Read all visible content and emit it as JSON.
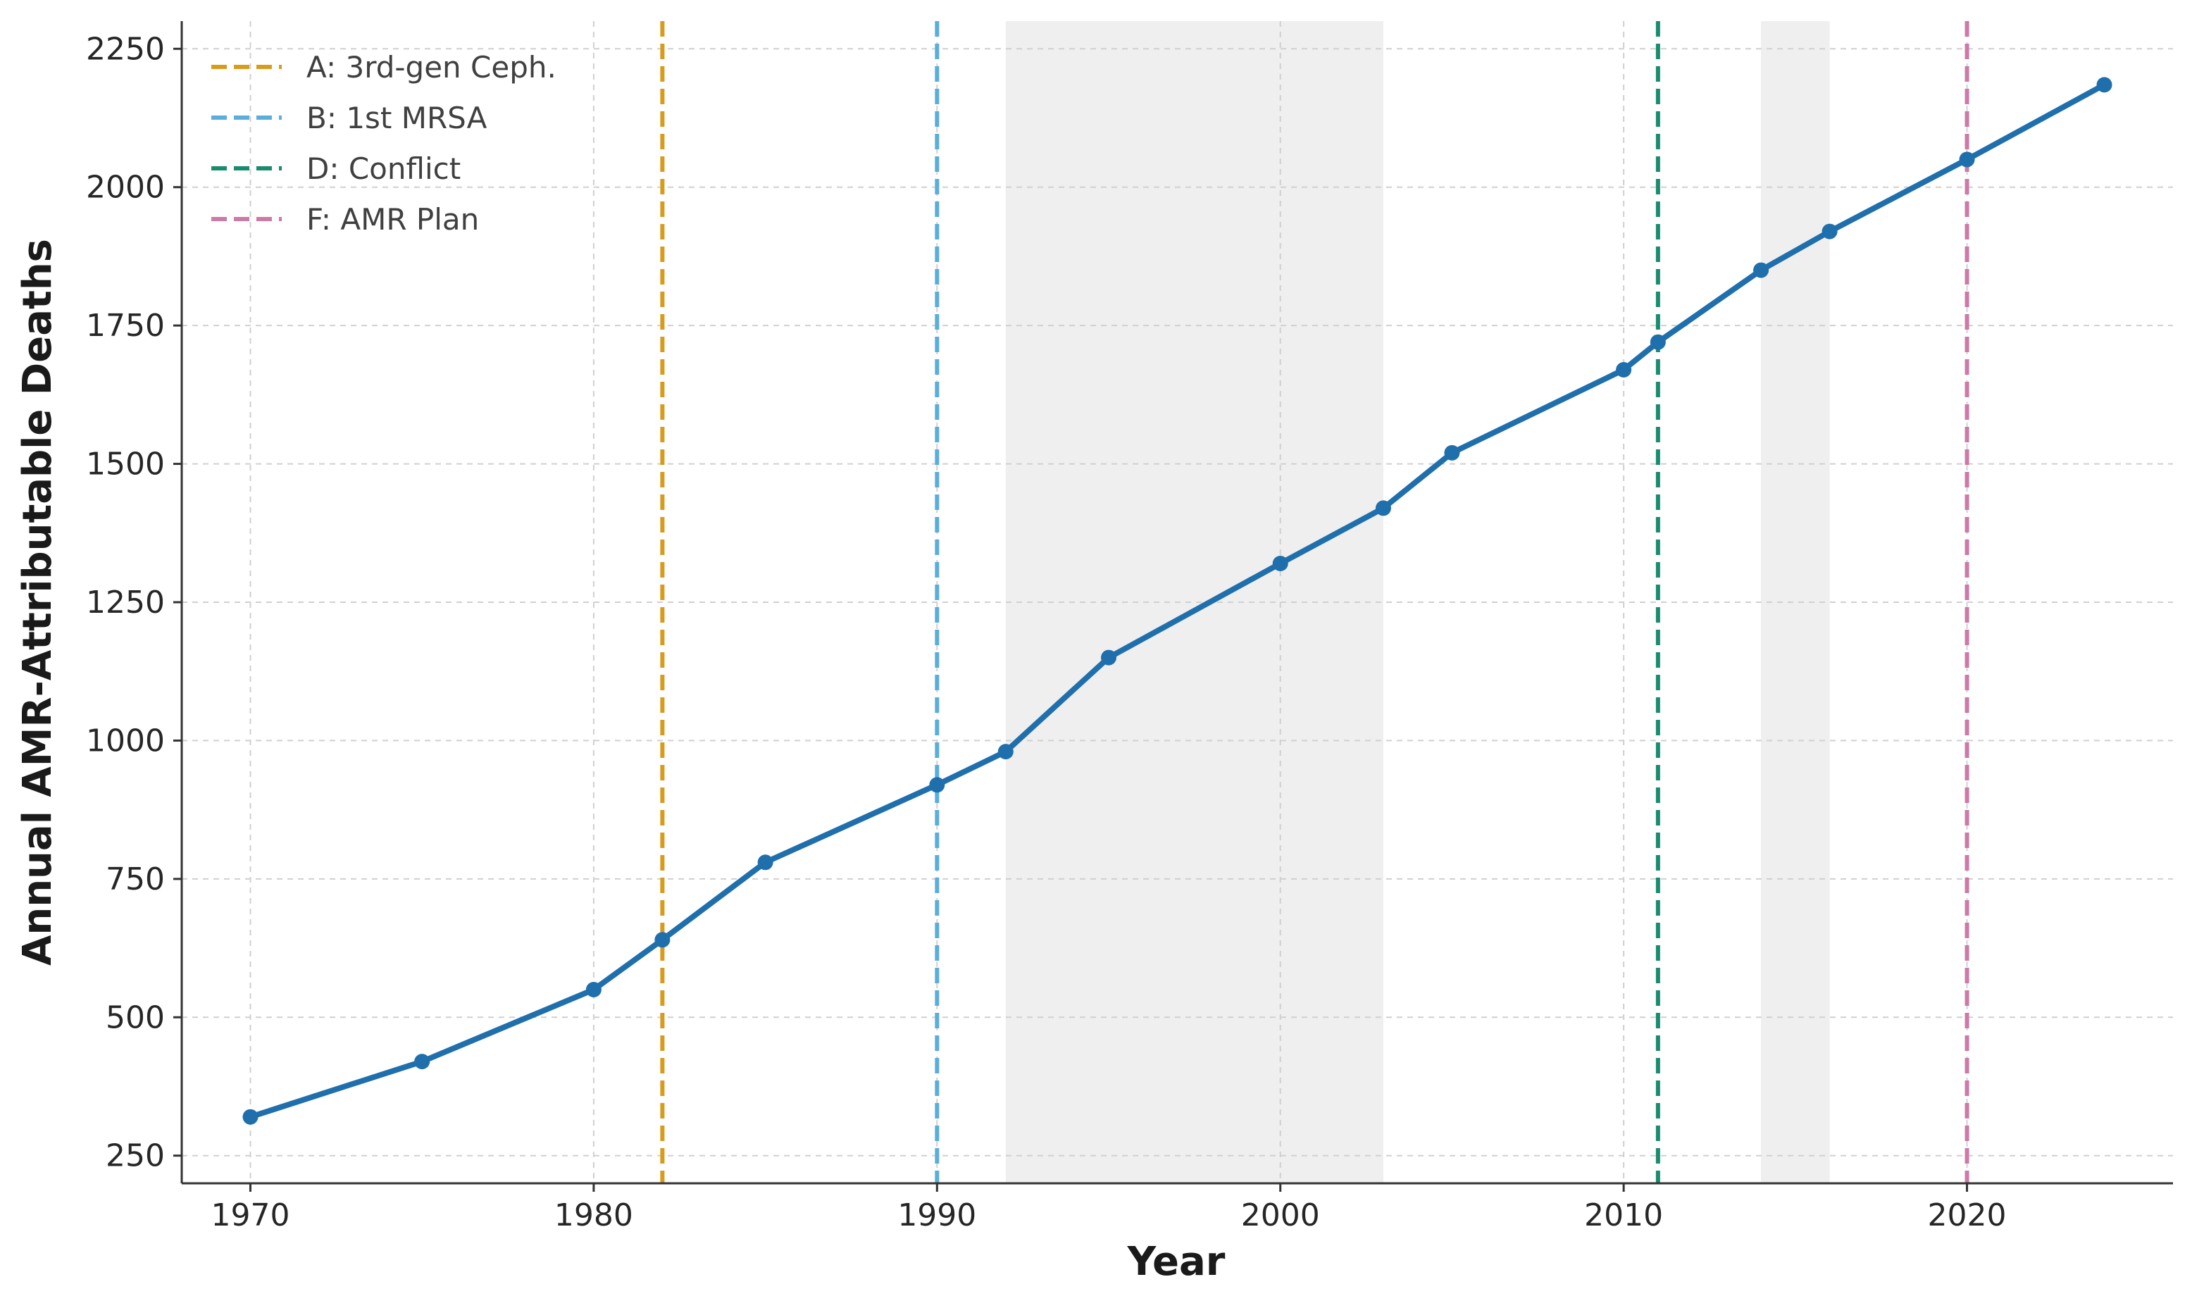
{
  "chart_data": {
    "type": "line",
    "title": "",
    "xlabel": "Year",
    "ylabel": "Annual AMR-Attributable Deaths",
    "xlim": [
      1968,
      2026
    ],
    "ylim": [
      200,
      2300
    ],
    "xticks": [
      1970,
      1980,
      1990,
      2000,
      2010,
      2020
    ],
    "yticks": [
      250,
      500,
      750,
      1000,
      1250,
      1500,
      1750,
      2000,
      2250
    ],
    "grid": true,
    "legend_position": "top-left",
    "series": [
      {
        "color": "#1f6fad",
        "x": [
          1970,
          1975,
          1980,
          1982,
          1985,
          1990,
          1992,
          1995,
          2000,
          2003,
          2005,
          2010,
          2011,
          2014,
          2016,
          2020,
          2024
        ],
        "y": [
          320,
          420,
          550,
          640,
          780,
          920,
          980,
          1150,
          1320,
          1420,
          1520,
          1670,
          1720,
          1850,
          1920,
          2050,
          2185
        ]
      }
    ],
    "shaded_regions": [
      {
        "x_start": 1992,
        "x_end": 2003,
        "color": "#efefef"
      },
      {
        "x_start": 2014,
        "x_end": 2016,
        "color": "#efefef"
      }
    ],
    "vertical_lines": [
      {
        "x": 1982,
        "label": "A: 3rd-gen Ceph.",
        "color": "#d89c1c"
      },
      {
        "x": 1990,
        "label": "B: 1st MRSA",
        "color": "#5aaedc"
      },
      {
        "x": 2011,
        "label": "D: Conflict",
        "color": "#1a8c6e"
      },
      {
        "x": 2020,
        "label": "F: AMR Plan",
        "color": "#cc7aa6"
      }
    ]
  }
}
